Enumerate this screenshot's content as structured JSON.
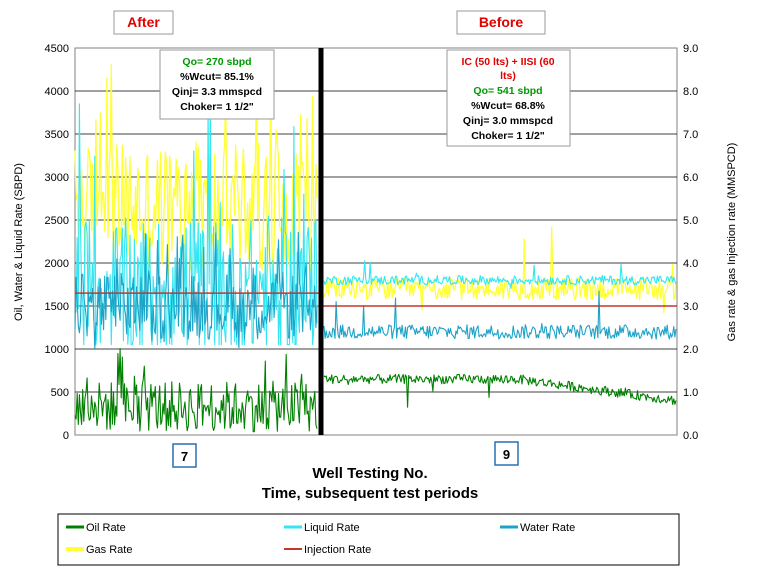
{
  "chart_data": {
    "type": "line",
    "xlabel": "Well Testing No.",
    "xlabel2": "Time, subsequent test periods",
    "ylabel": "Oil, Water & Liquid Rate (SBPD)",
    "y2label": "Gas rate & gas Injection rate (MMSPCD)",
    "ylim": [
      0,
      4500
    ],
    "y2lim": [
      0,
      9
    ],
    "yticks": [
      "0",
      "500",
      "1000",
      "1500",
      "2000",
      "2500",
      "3000",
      "3500",
      "4000",
      "4500"
    ],
    "y2ticks": [
      "0.0",
      "1.0",
      "2.0",
      "3.0",
      "4.0",
      "5.0",
      "6.0",
      "7.0",
      "8.0",
      "9.0"
    ],
    "grid": true,
    "period_labels": [
      "After",
      "Before"
    ],
    "test_numbers": [
      "7",
      "9"
    ],
    "legend_position": "bottom",
    "series": [
      {
        "name": "Oil Rate",
        "color": "#008000",
        "axis": "left",
        "segments": [
          {
            "period": "After",
            "min": 0,
            "max": 1050,
            "typical": 330
          },
          {
            "period": "Before",
            "start": 650,
            "mid": 650,
            "end": 400,
            "min": 300,
            "max": 760
          }
        ]
      },
      {
        "name": "Liquid Rate",
        "color": "#33e6f2",
        "axis": "left",
        "segments": [
          {
            "period": "After",
            "min": 1050,
            "max": 4000,
            "typical": 1700
          },
          {
            "period": "Before",
            "typical": 1800,
            "min": 1600,
            "max": 2050
          }
        ]
      },
      {
        "name": "Water Rate",
        "color": "#1ea3c8",
        "axis": "left",
        "segments": [
          {
            "period": "After",
            "min": 1000,
            "max": 2400,
            "typical": 1500
          },
          {
            "period": "Before",
            "typical": 1200,
            "min": 1100,
            "max": 1800
          }
        ]
      },
      {
        "name": "Gas Rate",
        "color": "#ffff33",
        "axis": "right",
        "segments": [
          {
            "period": "After",
            "min": 3.4,
            "max": 8.7,
            "typical": 5.3
          },
          {
            "period": "Before",
            "typical": 3.4,
            "min": 2.8,
            "max": 5.0
          }
        ]
      },
      {
        "name": "Injection Rate",
        "color": "#c0392b",
        "axis": "right",
        "segments": [
          {
            "period": "After",
            "value": 3.3
          },
          {
            "period": "Before",
            "value": 3.0
          }
        ]
      }
    ],
    "annotations": [
      {
        "period": "After",
        "lines": [
          {
            "text": "Qo= 270 sbpd",
            "color": "#009900"
          },
          {
            "text": "%Wcut= 85.1%",
            "color": "#000000"
          },
          {
            "text": "Qinj= 3.3 mmspcd",
            "color": "#000000"
          },
          {
            "text": "Choker= 1 1/2\"",
            "color": "#000000"
          }
        ]
      },
      {
        "period": "Before",
        "lines": [
          {
            "text": "IC (50 lts) + IISI (60",
            "color": "#e00000"
          },
          {
            "text": "lts)",
            "color": "#e00000"
          },
          {
            "text": "Qo= 541 sbpd",
            "color": "#009900"
          },
          {
            "text": "%Wcut= 68.8%",
            "color": "#000000"
          },
          {
            "text": "Qinj= 3.0 mmspcd",
            "color": "#000000"
          },
          {
            "text": "Choker= 1 1/2\"",
            "color": "#000000"
          }
        ]
      }
    ]
  }
}
